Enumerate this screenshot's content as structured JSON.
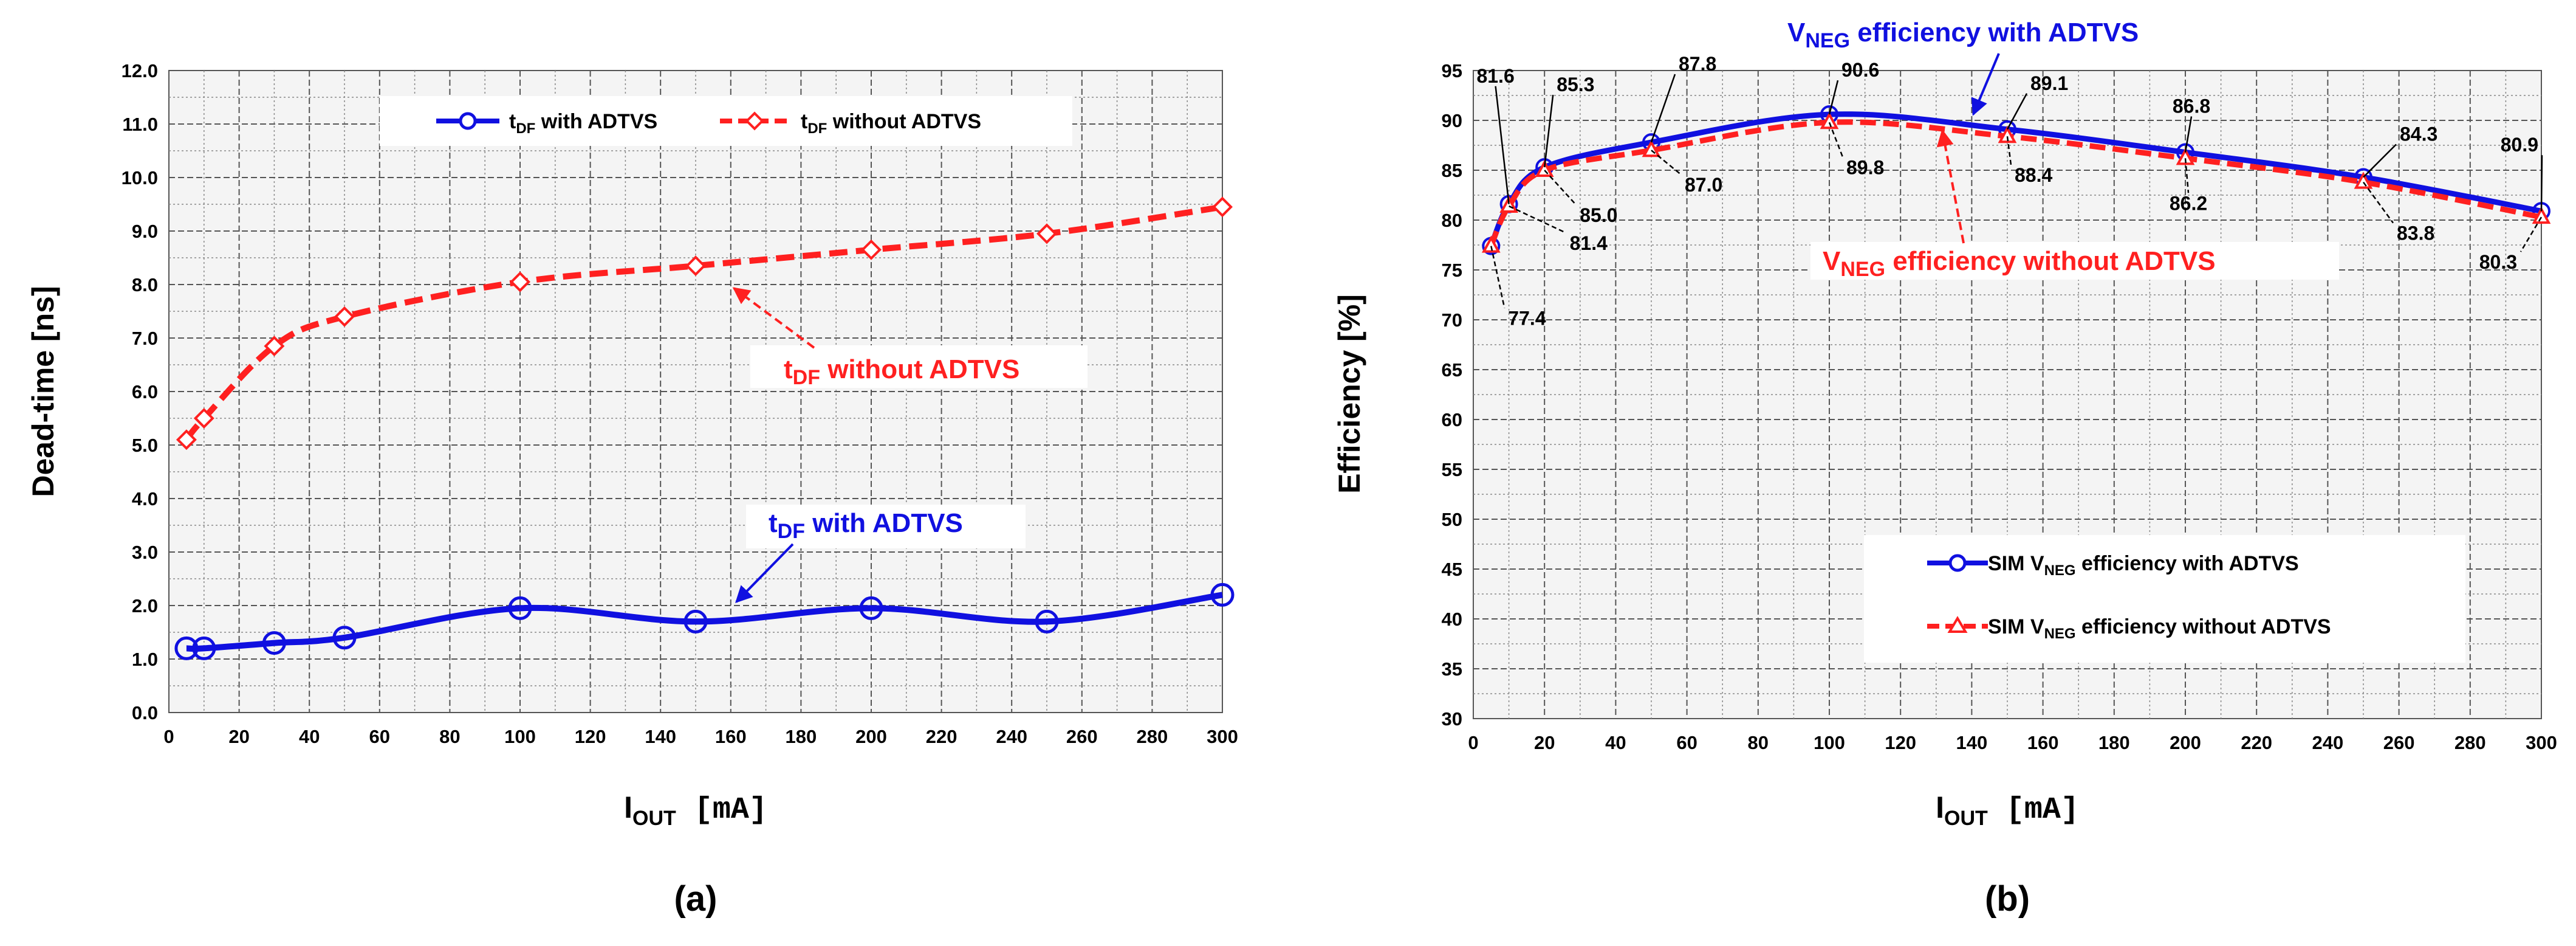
{
  "colors": {
    "blue": "#1010e0",
    "red": "#ff2020",
    "grid": "#555555"
  },
  "chart_data": [
    {
      "id": "a",
      "type": "line",
      "caption": "(a)",
      "xlabel": {
        "main": "I",
        "sub": "OUT",
        "unit": " [mA]"
      },
      "ylabel": "Dead-time [ns]",
      "xlim": [
        0,
        300
      ],
      "ylim": [
        0,
        12
      ],
      "xticks": [
        "0",
        "20",
        "40",
        "60",
        "80",
        "100",
        "120",
        "140",
        "160",
        "180",
        "200",
        "220",
        "240",
        "260",
        "280",
        "300"
      ],
      "yticks": [
        "0.0",
        "1.0",
        "2.0",
        "3.0",
        "4.0",
        "5.0",
        "6.0",
        "7.0",
        "8.0",
        "9.0",
        "10.0",
        "11.0",
        "12.0"
      ],
      "x": [
        5,
        10,
        30,
        50,
        100,
        150,
        200,
        250,
        300
      ],
      "series": [
        {
          "name": "t_DF with ADTVS",
          "legend_main": "t",
          "legend_sub": "DF",
          "legend_rest": " with ADTVS",
          "color": "blue",
          "values": [
            1.2,
            1.2,
            1.3,
            1.4,
            1.95,
            1.7,
            1.95,
            1.7,
            2.2
          ]
        },
        {
          "name": "t_DF without ADTVS",
          "legend_main": "t",
          "legend_sub": "DF",
          "legend_rest": " without ADTVS",
          "color": "red",
          "values": [
            5.1,
            5.5,
            6.85,
            7.4,
            8.05,
            8.35,
            8.65,
            8.95,
            9.45
          ]
        }
      ],
      "annotations": [
        {
          "main": "t",
          "sub": "DF",
          "rest": " with ADTVS",
          "color": "blue"
        },
        {
          "main": "t",
          "sub": "DF",
          "rest": " without ADTVS",
          "color": "red"
        }
      ]
    },
    {
      "id": "b",
      "type": "line",
      "caption": "(b)",
      "xlabel": {
        "main": "I",
        "sub": "OUT",
        "unit": " [mA]"
      },
      "ylabel": "Efficiency [%]",
      "xlim": [
        0,
        300
      ],
      "ylim": [
        30,
        95
      ],
      "xticks": [
        "0",
        "20",
        "40",
        "60",
        "80",
        "100",
        "120",
        "140",
        "160",
        "180",
        "200",
        "220",
        "240",
        "260",
        "280",
        "300"
      ],
      "yticks": [
        "30",
        "35",
        "40",
        "45",
        "50",
        "55",
        "60",
        "65",
        "70",
        "75",
        "80",
        "85",
        "90",
        "95"
      ],
      "x": [
        5,
        10,
        20,
        50,
        100,
        150,
        200,
        250,
        300
      ],
      "series": [
        {
          "name": "SIM V_NEG efficiency with ADTVS",
          "legend_pre": "SIM  V",
          "legend_sub": "NEG",
          "legend_rest": " efficiency with ADTVS",
          "color": "blue",
          "values": [
            77.4,
            81.6,
            85.3,
            87.8,
            90.6,
            89.1,
            86.8,
            84.3,
            80.9
          ]
        },
        {
          "name": "SIM V_NEG efficiency without ADTVS",
          "legend_pre": "SIM  V",
          "legend_sub": "NEG",
          "legend_rest": " efficiency without ADTVS",
          "color": "red",
          "values": [
            77.4,
            81.4,
            85.0,
            87.0,
            89.8,
            88.4,
            86.2,
            83.8,
            80.3
          ]
        }
      ],
      "data_labels": {
        "blue": [
          "81.6",
          "85.3",
          "87.8",
          "90.6",
          "89.1",
          "86.8",
          "84.3",
          "80.9"
        ],
        "red": [
          "77.4",
          "81.4",
          "85.0",
          "87.0",
          "89.8",
          "88.4",
          "86.2",
          "83.8",
          "80.3"
        ]
      },
      "annotations": [
        {
          "main": "V",
          "sub": "NEG",
          "rest": " efficiency with ADTVS",
          "color": "blue"
        },
        {
          "main": "V",
          "sub": "NEG",
          "rest": " efficiency without ADTVS",
          "color": "red"
        }
      ]
    }
  ]
}
